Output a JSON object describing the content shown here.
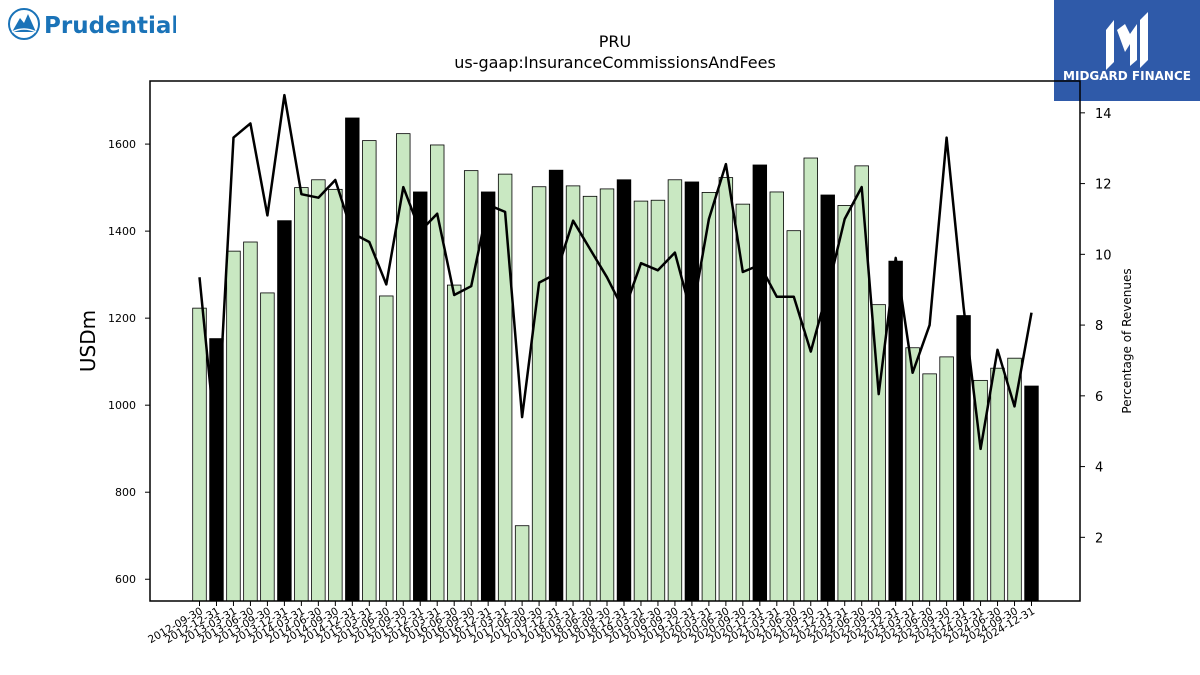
{
  "logos": {
    "left_text": "Prudential",
    "right_text": "MIDGARD FINANCE"
  },
  "chart_data": {
    "type": "bar",
    "title": "PRU",
    "subtitle": "us-gaap:InsuranceCommissionsAndFees",
    "ylabel": "USDm",
    "y2label": "Percentage of Revenues",
    "ylim": [
      550,
      1745
    ],
    "y2lim": [
      0.2,
      14.9
    ],
    "yticks": [
      600,
      800,
      1000,
      1200,
      1400,
      1600
    ],
    "y2ticks": [
      2,
      4,
      6,
      8,
      10,
      12,
      14
    ],
    "colors": {
      "quarter_bar": "#c9e8c2",
      "annual_bar": "#000000",
      "line": "#000000"
    },
    "categories": [
      "2012-09-30",
      "2012-12-31",
      "2013-03-31",
      "2013-06-30",
      "2013-09-30",
      "2013-12-31",
      "2014-03-31",
      "2014-06-30",
      "2014-09-30",
      "2014-12-31",
      "2015-03-31",
      "2015-06-30",
      "2015-09-30",
      "2015-12-31",
      "2016-03-31",
      "2016-06-30",
      "2016-09-30",
      "2016-12-31",
      "2017-03-31",
      "2017-06-30",
      "2017-09-30",
      "2017-12-31",
      "2018-03-31",
      "2018-06-30",
      "2018-09-30",
      "2018-12-31",
      "2019-03-31",
      "2019-06-30",
      "2019-09-30",
      "2019-12-31",
      "2020-03-31",
      "2020-06-30",
      "2020-09-30",
      "2020-12-31",
      "2021-03-31",
      "2021-06-30",
      "2021-09-30",
      "2021-12-31",
      "2022-03-31",
      "2022-06-30",
      "2022-09-30",
      "2022-12-31",
      "2023-03-31",
      "2023-06-30",
      "2023-09-30",
      "2023-12-31",
      "2024-03-31",
      "2024-06-30",
      "2024-09-30",
      "2024-12-31"
    ],
    "tick_labels": [
      "2012-09-30",
      "2012-12-31",
      "2013-03-31",
      "2013-06-30",
      "2013-09-30",
      "2013-12-31",
      "2014-03-31",
      "2014-06-30",
      "2014-09-30",
      "2014-12-31",
      "2015-03-31",
      "2015-06-30",
      "2015-09-30",
      "2015-12-31",
      "2016-03-31",
      "2016-06-30",
      "2016-09-30",
      "2016-12-31",
      "2017-03-31",
      "2017-06-30",
      "2017-09-30",
      "2017-12-31",
      "2018-03-31",
      "2018-06-30",
      "2018-09-30",
      "2018-12-31",
      "2019-03-31",
      "2019-06-30",
      "2019-09-30",
      "2019-12-31",
      "2020-03-31",
      "2020-06-30",
      "2020-09-30",
      "2020-12-31",
      "2021-03-31",
      "2021-06-30",
      "2021-09-30",
      "2021-12-31",
      "2022-03-31",
      "2022-06-30",
      "2022-09-30",
      "2022-12-31",
      "2023-03-31",
      "2023-06-30",
      "2023-09-30",
      "2023-12-31",
      "2024-03-31",
      "2024-06-30",
      "2024-09-30",
      "2024-12-31"
    ],
    "annual_flags": [
      0,
      1,
      0,
      0,
      0,
      1,
      0,
      0,
      0,
      1,
      0,
      0,
      0,
      1,
      0,
      0,
      0,
      1,
      0,
      0,
      0,
      1,
      0,
      0,
      0,
      1,
      0,
      0,
      0,
      1,
      0,
      0,
      0,
      1,
      0,
      0,
      0,
      1,
      0,
      0,
      0,
      1,
      0,
      0,
      0,
      1,
      0,
      0,
      0,
      1
    ],
    "values": [
      1223,
      1153,
      1354,
      1375,
      1258,
      1424,
      1500,
      1518,
      1496,
      1660,
      1608,
      1251,
      1624,
      1490,
      1598,
      1276,
      1539,
      1490,
      1531,
      723,
      1502,
      1540,
      1504,
      1480,
      1497,
      1518,
      1469,
      1471,
      1518,
      1513,
      1489,
      1523,
      1462,
      1552,
      1490,
      1401,
      1568,
      1483,
      1459,
      1550,
      1231,
      1331,
      1132,
      1072,
      1111,
      1206,
      1057,
      1085,
      1108,
      1044
    ],
    "percentages": [
      9.35,
      4.5,
      13.3,
      13.7,
      11.1,
      14.5,
      11.7,
      11.6,
      12.1,
      10.6,
      10.35,
      9.15,
      11.9,
      10.65,
      11.15,
      8.85,
      9.1,
      11.4,
      11.2,
      5.4,
      9.2,
      9.45,
      10.95,
      10.15,
      9.35,
      8.4,
      9.75,
      9.55,
      10.05,
      8.25,
      11.0,
      12.55,
      9.5,
      9.7,
      8.8,
      8.8,
      7.25,
      9.0,
      11.0,
      11.9,
      6.05,
      9.9,
      6.65,
      8.0,
      13.3,
      8.5,
      4.5,
      7.3,
      5.7,
      8.35
    ]
  }
}
